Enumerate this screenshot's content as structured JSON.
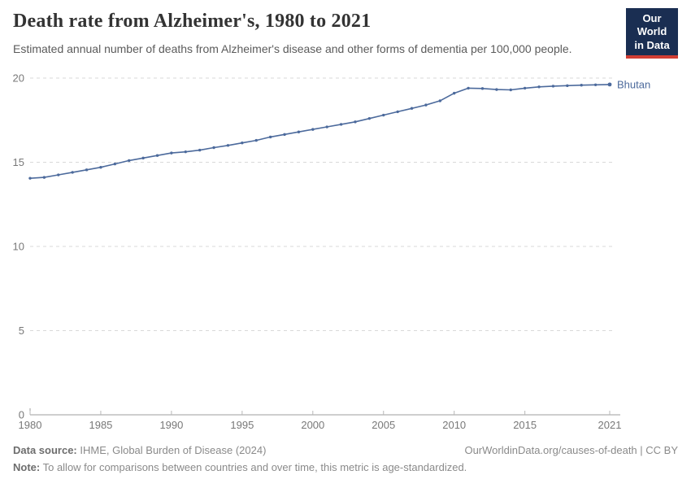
{
  "header": {
    "title": "Death rate from Alzheimer's, 1980 to 2021",
    "subtitle": "Estimated annual number of deaths from Alzheimer's disease and other forms of dementia per 100,000 people.",
    "logo": {
      "line1": "Our World",
      "line2": "in Data",
      "bg_color": "#1a2e52",
      "accent_color": "#d13d33"
    }
  },
  "chart_data": {
    "type": "line",
    "title": "Death rate from Alzheimer's, 1980 to 2021",
    "subtitle": "Estimated annual number of deaths from Alzheimer's disease and other forms of dementia per 100,000 people.",
    "xlabel": "",
    "ylabel": "",
    "xlim": [
      1980,
      2021
    ],
    "ylim": [
      0,
      20
    ],
    "x_ticks": [
      1980,
      1985,
      1990,
      1995,
      2000,
      2005,
      2010,
      2015,
      2021
    ],
    "y_ticks": [
      0,
      5,
      10,
      15,
      20
    ],
    "grid": "horizontal-dashed",
    "legend_position": "end-of-line",
    "series": [
      {
        "name": "Bhutan",
        "color": "#4c6a9c",
        "x": [
          1980,
          1981,
          1982,
          1983,
          1984,
          1985,
          1986,
          1987,
          1988,
          1989,
          1990,
          1991,
          1992,
          1993,
          1994,
          1995,
          1996,
          1997,
          1998,
          1999,
          2000,
          2001,
          2002,
          2003,
          2004,
          2005,
          2006,
          2007,
          2008,
          2009,
          2010,
          2011,
          2012,
          2013,
          2014,
          2015,
          2016,
          2017,
          2018,
          2019,
          2020,
          2021
        ],
        "values": [
          14.05,
          14.1,
          14.25,
          14.4,
          14.55,
          14.7,
          14.9,
          15.1,
          15.25,
          15.4,
          15.55,
          15.62,
          15.72,
          15.87,
          16.0,
          16.15,
          16.3,
          16.5,
          16.65,
          16.8,
          16.95,
          17.1,
          17.25,
          17.4,
          17.6,
          17.8,
          18.0,
          18.2,
          18.4,
          18.65,
          19.1,
          19.4,
          19.38,
          19.32,
          19.3,
          19.4,
          19.48,
          19.52,
          19.55,
          19.58,
          19.6,
          19.62
        ]
      }
    ],
    "colors": {
      "gridline": "#d9d9d9",
      "axis": "#9e9e9e",
      "tick_label": "#787878"
    }
  },
  "footer": {
    "data_source_label": "Data source:",
    "data_source": " IHME, Global Burden of Disease (2024)",
    "note_label": "Note:",
    "note": " To allow for comparisons between countries and over time, this metric is age-standardized.",
    "link": "OurWorldinData.org/causes-of-death | CC BY"
  }
}
